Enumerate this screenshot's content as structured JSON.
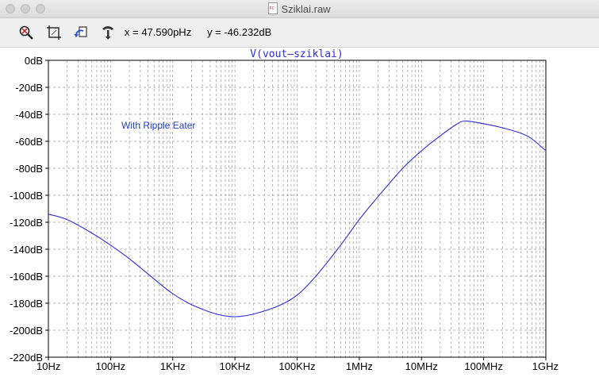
{
  "window": {
    "title": "Sziklai.raw",
    "file_icon": "ltspice-raw-file-icon"
  },
  "toolbar": {
    "buttons": [
      {
        "name": "autorange-button",
        "icon": "magnifier-cross-icon"
      },
      {
        "name": "zoom-to-fit-button",
        "icon": "frame-crop-icon"
      },
      {
        "name": "undo-zoom-button",
        "icon": "back-arrow-icon"
      },
      {
        "name": "cursor-probe-button",
        "icon": "probe-hand-icon"
      }
    ],
    "x_readout": "x = 47.590pHz",
    "y_readout": "y = -46.232dB"
  },
  "annotation": "With Ripple Eater",
  "colors": {
    "trace": "#2b2bdf",
    "annotation": "#1f3fd8",
    "grid": "#9a9a9a",
    "axis": "#000000"
  },
  "chart_data": {
    "type": "line",
    "title": "V(vout–sziklai)",
    "x_scale": "log",
    "xlim": [
      10,
      1000000000
    ],
    "ylim": [
      -220,
      0
    ],
    "grid": true,
    "x_tick_values": [
      10,
      100,
      1000,
      10000,
      100000,
      1000000,
      10000000,
      100000000,
      1000000000
    ],
    "x_tick_labels": [
      "10Hz",
      "100Hz",
      "1KHz",
      "10KHz",
      "100KHz",
      "1MHz",
      "10MHz",
      "100MHz",
      "1GHz"
    ],
    "y_tick_values": [
      0,
      -20,
      -40,
      -60,
      -80,
      -100,
      -120,
      -140,
      -160,
      -180,
      -200,
      -220
    ],
    "y_tick_labels": [
      "0dB",
      "-20dB",
      "-40dB",
      "-60dB",
      "-80dB",
      "-100dB",
      "-120dB",
      "-140dB",
      "-160dB",
      "-180dB",
      "-200dB",
      "-220dB"
    ],
    "series": [
      {
        "x": [
          10,
          20,
          50,
          100,
          200,
          500,
          1000,
          2000,
          5000,
          10000,
          20000,
          50000,
          100000,
          200000,
          500000,
          1000000,
          2000000,
          5000000,
          10000000,
          20000000,
          35000000,
          50000000,
          100000000,
          200000000,
          500000000,
          1000000000
        ],
        "y": [
          -114,
          -118,
          -128,
          -137,
          -147,
          -162,
          -173,
          -181,
          -188,
          -190,
          -188,
          -182,
          -174,
          -160,
          -137,
          -118,
          -101,
          -80,
          -67,
          -56,
          -48,
          -45,
          -47,
          -50,
          -56,
          -67
        ]
      }
    ]
  }
}
